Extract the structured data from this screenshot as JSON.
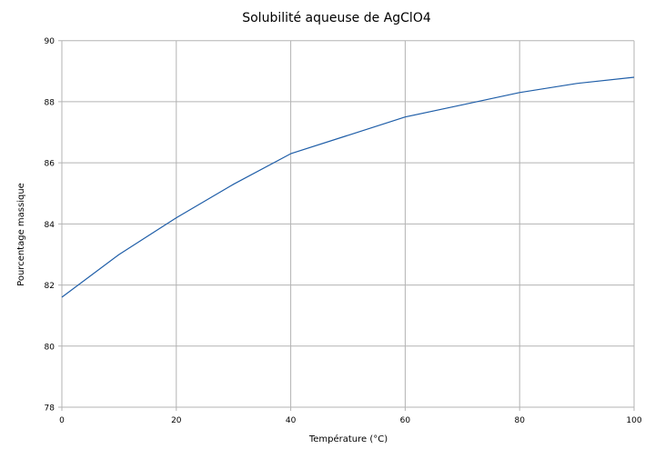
{
  "chart_data": {
    "type": "line",
    "title": "Solubilité aqueuse de AgClO4",
    "xlabel": "Température  (°C)",
    "ylabel": "Pourcentage massique",
    "xlim": [
      0,
      100
    ],
    "ylim": [
      78,
      90
    ],
    "xticks": [
      0,
      20,
      40,
      60,
      80,
      100
    ],
    "yticks": [
      78,
      80,
      82,
      84,
      86,
      88,
      90
    ],
    "grid": true,
    "legend": "none",
    "series": [
      {
        "color": "#1f5ea8",
        "x": [
          0,
          10,
          20,
          30,
          40,
          50,
          60,
          70,
          80,
          90,
          100
        ],
        "y": [
          81.6,
          83.0,
          84.2,
          85.3,
          86.3,
          86.9,
          87.5,
          87.9,
          88.3,
          88.6,
          88.8
        ]
      }
    ]
  }
}
